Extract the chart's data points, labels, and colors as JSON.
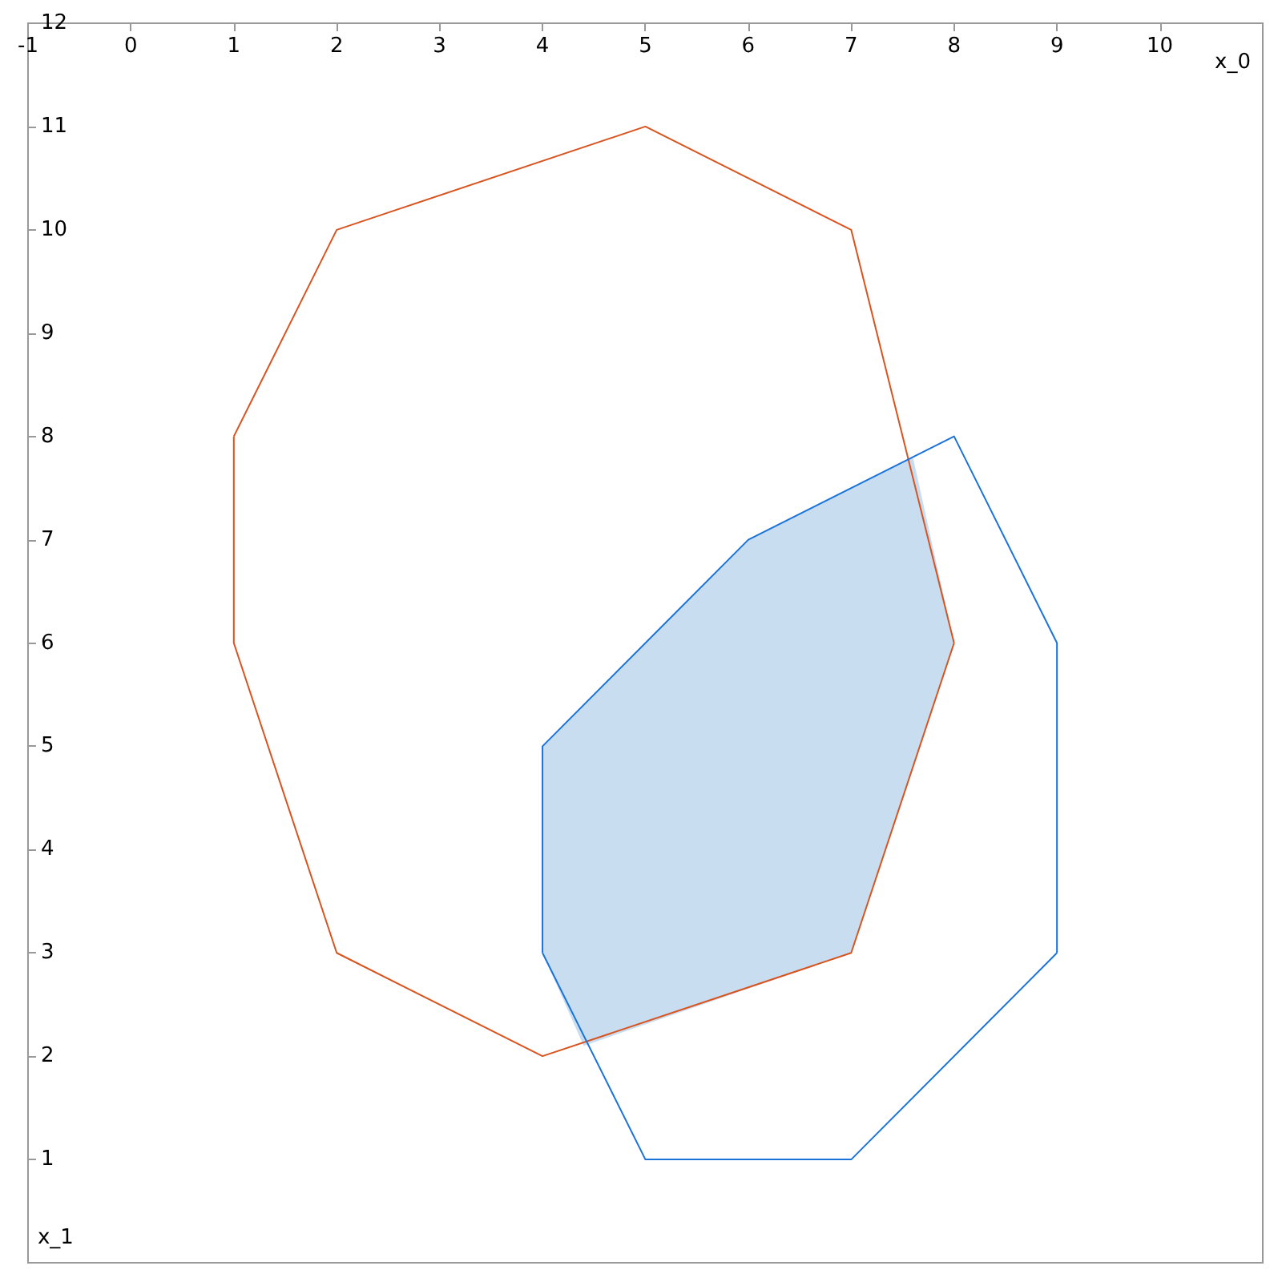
{
  "chart_data": {
    "type": "line",
    "xlabel": "x_0",
    "ylabel": "x_1",
    "xlim": [
      -1,
      11
    ],
    "ylim": [
      0,
      12
    ],
    "xticks": [
      -1,
      0,
      1,
      2,
      3,
      4,
      5,
      6,
      7,
      8,
      9,
      10
    ],
    "yticks": [
      1,
      2,
      3,
      4,
      5,
      6,
      7,
      8,
      9,
      10,
      11,
      12
    ],
    "grid": false,
    "marker": "none",
    "line_style": "solid",
    "series": [
      {
        "type": "area",
        "color": "#c9ddf0",
        "x": [
          4,
          6,
          7.6,
          8,
          7,
          4.4,
          4,
          4
        ],
        "values": [
          5,
          7,
          7.8,
          6,
          3,
          2.1,
          3,
          5
        ]
      },
      {
        "color": "#d9531e",
        "x": [
          1,
          2,
          5,
          7,
          8
        ],
        "values": [
          8,
          10,
          11,
          10,
          6
        ]
      },
      {
        "color": "#d9531e",
        "x": [
          1,
          1,
          2,
          4,
          7,
          8
        ],
        "values": [
          8,
          6,
          3,
          2,
          3,
          6
        ]
      },
      {
        "color": "#1a73d9",
        "x": [
          4,
          4,
          6,
          8,
          9,
          9
        ],
        "values": [
          3,
          5,
          7,
          8,
          6,
          3
        ]
      },
      {
        "color": "#1a73d9",
        "x": [
          4,
          5,
          7,
          9
        ],
        "values": [
          3,
          1,
          1,
          3
        ]
      }
    ]
  }
}
